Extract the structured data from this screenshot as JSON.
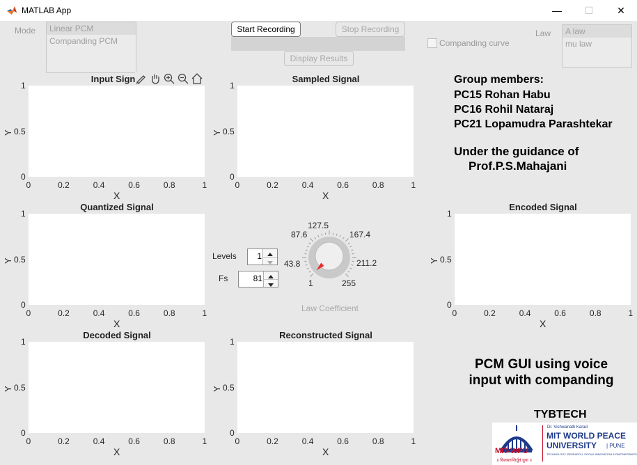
{
  "window": {
    "title": "MATLAB App",
    "minimize": "—",
    "maximize": "☐",
    "close": "✕"
  },
  "mode": {
    "label": "Mode",
    "items": [
      "Linear PCM",
      "Companding PCM"
    ],
    "selected": "Linear PCM"
  },
  "buttons": {
    "start": "Start Recording",
    "stop": "Stop Recording",
    "display": "Display Results"
  },
  "companding_curve": {
    "label": "Companding curve",
    "checked": false
  },
  "law": {
    "label": "Law",
    "items": [
      "A law",
      "mu law"
    ],
    "selected": "A law"
  },
  "info": {
    "heading": "Group members:",
    "members": [
      "PC15 Rohan Habu",
      "PC16 Rohil Nataraj",
      "PC21 Lopamudra Parashtekar"
    ],
    "guidance_line1": "Under the guidance of",
    "guidance_line2": "Prof.P.S.Mahajani",
    "project_line1": "PCM GUI using voice",
    "project_line2": "input with companding",
    "class": "TYBTECH"
  },
  "axes": {
    "input": {
      "title": "Input Signal",
      "xlabel": "X",
      "ylabel": "Y"
    },
    "sampled": {
      "title": "Sampled Signal",
      "xlabel": "X",
      "ylabel": "Y"
    },
    "quantized": {
      "title": "Quantized Signal",
      "xlabel": "X",
      "ylabel": "Y"
    },
    "encoded": {
      "title": "Encoded Signal",
      "xlabel": "X",
      "ylabel": "Y"
    },
    "decoded": {
      "title": "Decoded Signal",
      "xlabel": "X",
      "ylabel": "Y"
    },
    "reconstructed": {
      "title": "Reconstructed Signal",
      "xlabel": "X",
      "ylabel": "Y"
    },
    "xticks": [
      "0",
      "0.2",
      "0.4",
      "0.6",
      "0.8",
      "1"
    ],
    "yticks": [
      "0",
      "0.5",
      "1"
    ]
  },
  "controls": {
    "levels_label": "Levels",
    "levels_value": "1",
    "fs_label": "Fs",
    "fs_value": "81"
  },
  "knob": {
    "label": "Law Coefficient",
    "ticks": [
      "1",
      "43.8",
      "87.6",
      "127.5",
      "167.4",
      "211.2",
      "255"
    ],
    "value": 1
  },
  "logo": {
    "left_text": "MIT-WPU",
    "small_text": "Dr. Vishwanath Karad",
    "line1": "MIT WORLD PEACE",
    "line2": "UNIVERSITY",
    "line2b": "| PUNE",
    "tagline": "TECHNOLOGY, RESEARCH, SOCIAL INNOVATION & PARTNERSHIPS",
    "hindi": "॥ विश्वशान्तिर्ध्रुवं ध्रुवा ॥"
  },
  "colors": {
    "accent": "#ea2b2b",
    "background": "#e8e8e8",
    "plot": "#ffffff",
    "logo_red": "#c8102e",
    "logo_blue": "#1d3a8a"
  }
}
